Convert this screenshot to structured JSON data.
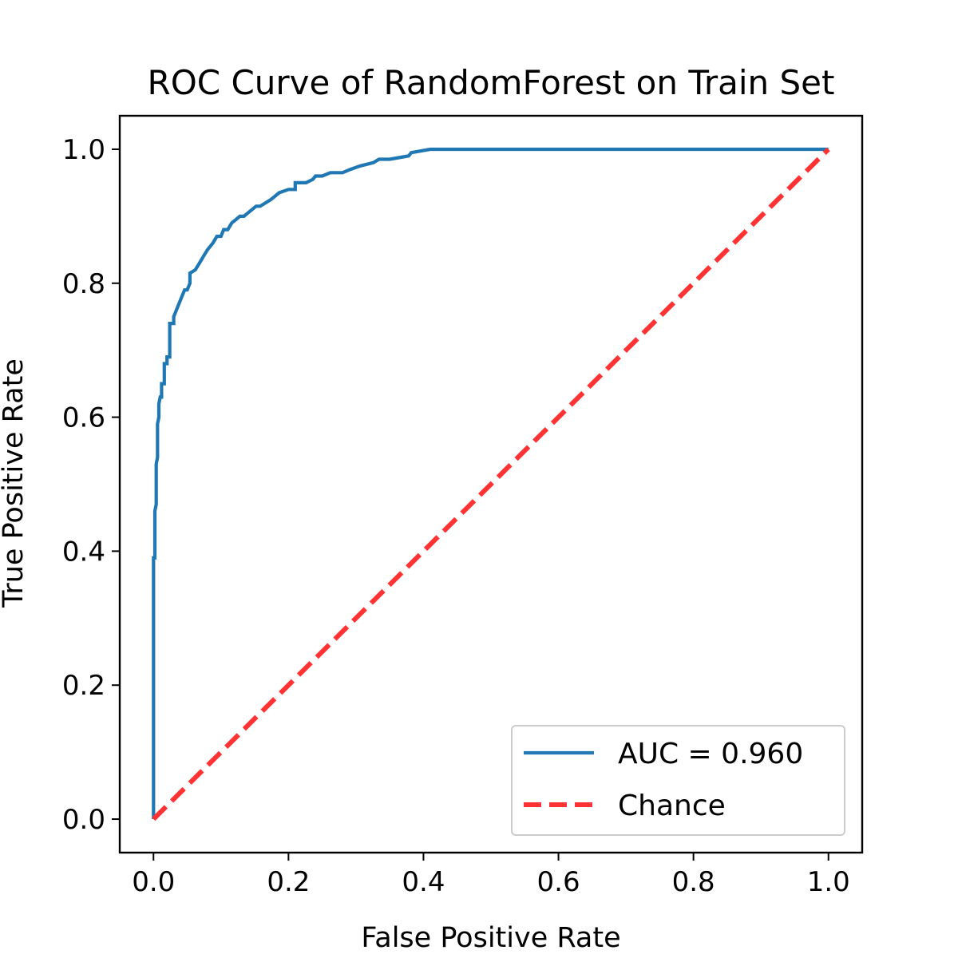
{
  "chart_data": {
    "type": "line",
    "title": "ROC Curve of RandomForest on Train Set",
    "xlabel": "False Positive Rate",
    "ylabel": "True Positive Rate",
    "xlim": [
      -0.05,
      1.05
    ],
    "ylim": [
      -0.05,
      1.05
    ],
    "xticks": [
      0.0,
      0.2,
      0.4,
      0.6,
      0.8,
      1.0
    ],
    "yticks": [
      0.0,
      0.2,
      0.4,
      0.6,
      0.8,
      1.0
    ],
    "xtick_labels": [
      "0.0",
      "0.2",
      "0.4",
      "0.6",
      "0.8",
      "1.0"
    ],
    "ytick_labels": [
      "0.0",
      "0.2",
      "0.4",
      "0.6",
      "0.8",
      "1.0"
    ],
    "grid": false,
    "legend_position": "bottom-right",
    "series": [
      {
        "name": "AUC = 0.960",
        "color": "#1f77b4",
        "style": "solid",
        "x": [
          0.0,
          0.0,
          0.002,
          0.002,
          0.004,
          0.004,
          0.006,
          0.006,
          0.008,
          0.008,
          0.01,
          0.012,
          0.012,
          0.016,
          0.016,
          0.02,
          0.02,
          0.024,
          0.024,
          0.03,
          0.03,
          0.034,
          0.038,
          0.042,
          0.046,
          0.05,
          0.054,
          0.054,
          0.062,
          0.068,
          0.074,
          0.08,
          0.088,
          0.094,
          0.1,
          0.104,
          0.11,
          0.116,
          0.122,
          0.128,
          0.134,
          0.14,
          0.146,
          0.152,
          0.158,
          0.166,
          0.174,
          0.18,
          0.186,
          0.2,
          0.21,
          0.21,
          0.226,
          0.236,
          0.24,
          0.25,
          0.262,
          0.28,
          0.292,
          0.306,
          0.326,
          0.334,
          0.35,
          0.378,
          0.382,
          0.41,
          1.0
        ],
        "y": [
          0.0,
          0.39,
          0.39,
          0.46,
          0.47,
          0.53,
          0.54,
          0.59,
          0.6,
          0.62,
          0.63,
          0.63,
          0.65,
          0.65,
          0.68,
          0.68,
          0.69,
          0.69,
          0.74,
          0.74,
          0.75,
          0.76,
          0.77,
          0.78,
          0.79,
          0.79,
          0.8,
          0.815,
          0.82,
          0.83,
          0.84,
          0.85,
          0.86,
          0.87,
          0.87,
          0.88,
          0.88,
          0.89,
          0.895,
          0.9,
          0.9,
          0.905,
          0.91,
          0.915,
          0.915,
          0.92,
          0.925,
          0.93,
          0.935,
          0.94,
          0.94,
          0.95,
          0.95,
          0.955,
          0.96,
          0.96,
          0.965,
          0.965,
          0.97,
          0.975,
          0.98,
          0.985,
          0.985,
          0.99,
          0.995,
          1.0,
          1.0
        ]
      },
      {
        "name": "Chance",
        "color": "#ff3333",
        "style": "dashed",
        "x": [
          0.0,
          1.0
        ],
        "y": [
          0.0,
          1.0
        ]
      }
    ]
  }
}
